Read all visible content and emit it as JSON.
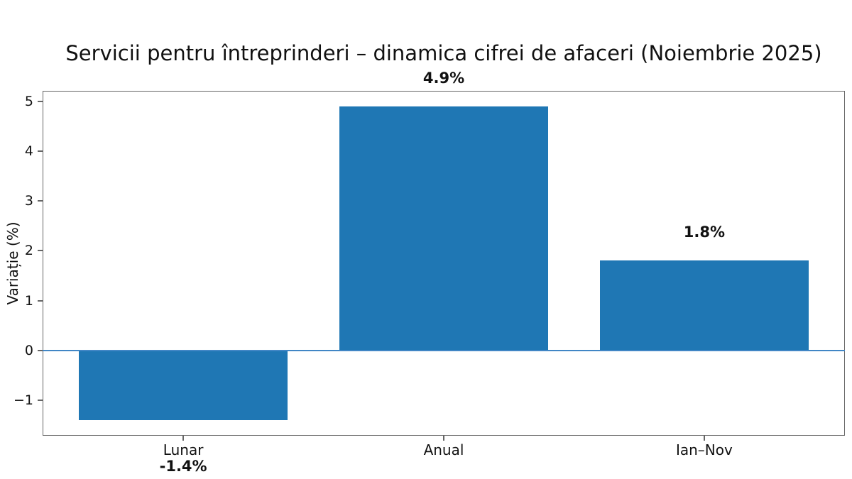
{
  "chart_data": {
    "type": "bar",
    "title": "Servicii pentru întreprinderi – dinamica cifrei de afaceri (Noiembrie 2025)",
    "ylabel": "Variație (%)",
    "xlabel": "",
    "categories": [
      "Lunar",
      "Anual",
      "Ian–Nov"
    ],
    "values": [
      -1.4,
      4.9,
      1.8
    ],
    "value_labels": [
      "-1.4%",
      "4.9%",
      "1.8%"
    ],
    "yticks": [
      -1,
      0,
      1,
      2,
      3,
      4,
      5
    ],
    "ylim": [
      -1.715,
      5.215
    ],
    "bar_width_fraction": 0.8,
    "bar_color": "#1f77b4",
    "zero_line_color": "#4186c5",
    "axis_color": "#666666",
    "text_color": "#111111",
    "grid": false,
    "legend": "none"
  }
}
